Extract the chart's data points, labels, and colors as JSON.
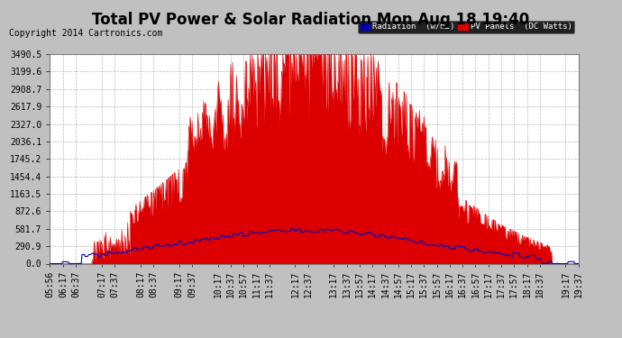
{
  "title": "Total PV Power & Solar Radiation Mon Aug 18 19:40",
  "copyright": "Copyright 2014 Cartronics.com",
  "legend_items": [
    {
      "label": "Radiation  (w/m2)",
      "color": "#0000bb",
      "bg": "#0000bb"
    },
    {
      "label": "PV Panels  (DC Watts)",
      "color": "#dd0000",
      "bg": "#dd0000"
    }
  ],
  "yticks": [
    0.0,
    290.9,
    581.7,
    872.6,
    1163.5,
    1454.4,
    1745.2,
    2036.1,
    2327.0,
    2617.9,
    2908.7,
    3199.6,
    3490.5
  ],
  "ymax": 3490.5,
  "ymin": 0.0,
  "bg_color": "#c0c0c0",
  "plot_bg_color": "#ffffff",
  "grid_color": "#b0b0b0",
  "red_color": "#dd0000",
  "blue_color": "#0000bb",
  "title_fontsize": 12,
  "copyright_fontsize": 7,
  "tick_label_fontsize": 7
}
